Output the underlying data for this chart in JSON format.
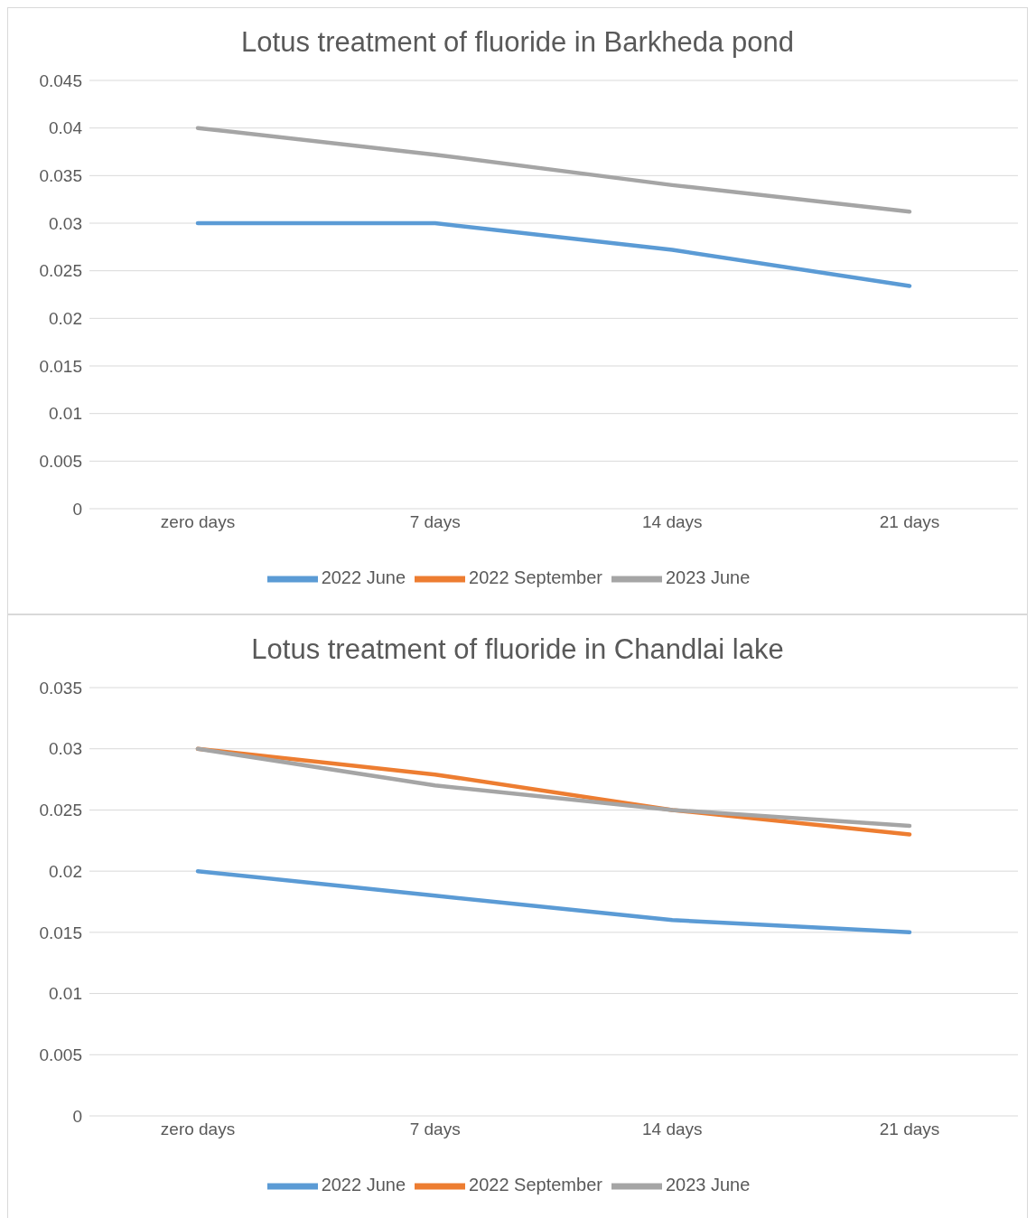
{
  "chart_data": [
    {
      "type": "line",
      "title": "Lotus treatment of fluoride in Barkheda pond",
      "categories": [
        "zero days",
        "7 days",
        "14 days",
        "21 days"
      ],
      "ylim": [
        0,
        0.045
      ],
      "yticks": [
        0,
        0.005,
        0.01,
        0.015,
        0.02,
        0.025,
        0.03,
        0.035,
        0.04,
        0.045
      ],
      "grid": "y",
      "legend": "bottom",
      "marker": "none",
      "line_style": "solid",
      "series": [
        {
          "name": "2022 June",
          "color": "#5b9bd5",
          "values": [
            0.03,
            0.03,
            0.0272,
            0.0234
          ]
        },
        {
          "name": "2022 September",
          "color": "#ed7d31",
          "values": [
            null,
            null,
            null,
            null
          ]
        },
        {
          "name": "2023 June",
          "color": "#a5a5a5",
          "values": [
            0.04,
            0.0372,
            0.034,
            0.0312
          ]
        }
      ]
    },
    {
      "type": "line",
      "title": "Lotus treatment of fluoride in Chandlai lake",
      "categories": [
        "zero days",
        "7 days",
        "14 days",
        "21 days"
      ],
      "ylim": [
        0,
        0.035
      ],
      "yticks": [
        0,
        0.005,
        0.01,
        0.015,
        0.02,
        0.025,
        0.03,
        0.035
      ],
      "grid": "y",
      "legend": "bottom",
      "marker": "none",
      "line_style": "solid",
      "series": [
        {
          "name": "2022 June",
          "color": "#5b9bd5",
          "values": [
            0.02,
            0.018,
            0.016,
            0.015
          ]
        },
        {
          "name": "2022 September",
          "color": "#ed7d31",
          "values": [
            0.03,
            0.0279,
            0.025,
            0.023
          ]
        },
        {
          "name": "2023 June",
          "color": "#a5a5a5",
          "values": [
            0.03,
            0.027,
            0.025,
            0.0237
          ]
        }
      ]
    }
  ]
}
